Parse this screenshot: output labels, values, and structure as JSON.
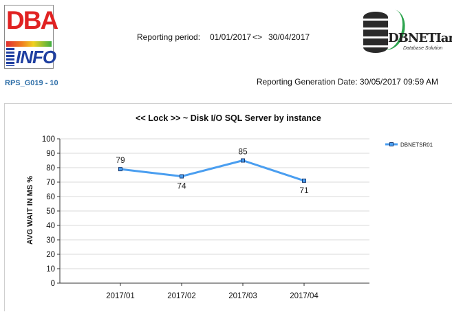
{
  "header": {
    "logo_left_text_1": "DBA",
    "logo_left_text_2": "INFO",
    "period_label": "Reporting period:",
    "period_from": "01/01/2017",
    "period_separator": "<>",
    "period_to": "30/04/2017",
    "logo_right_name": "DBNETIan",
    "logo_right_tagline": "Database Solution",
    "report_code": "RPS_G019 - 10",
    "generation_date": "Reporting Generation Date: 30/05/2017 09:59 AM"
  },
  "chart_data": {
    "type": "line",
    "title": "<< Lock >> ~ Disk I/O SQL Server by instance",
    "xlabel": "",
    "ylabel": "AVG WAIT IN MS %",
    "categories": [
      "2017/01",
      "2017/02",
      "2017/03",
      "2017/04"
    ],
    "series": [
      {
        "name": "DBNETSR01",
        "values": [
          79,
          74,
          85,
          71
        ],
        "color": "#4a9ef0"
      }
    ],
    "ylim": [
      0,
      100
    ],
    "yticks": [
      0,
      10,
      20,
      30,
      40,
      50,
      60,
      70,
      80,
      90,
      100
    ],
    "grid": true,
    "legend_position": "top-right",
    "data_labels": true
  }
}
